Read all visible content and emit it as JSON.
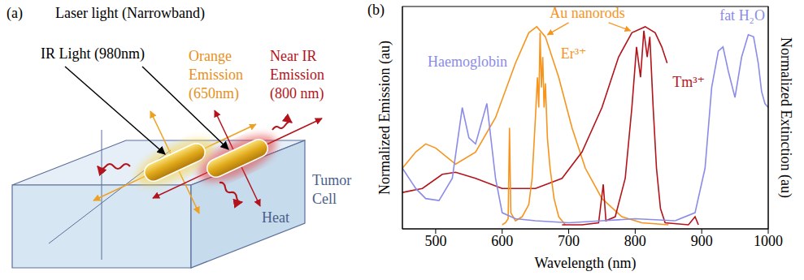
{
  "diagram": {
    "panel_label": "(a)",
    "title": "Laser light (Narrowband)",
    "excitation": "IR Light (980nm)",
    "orange_emission": [
      "Orange",
      "Emission",
      "(650nm)"
    ],
    "nir_emission": [
      "Near IR",
      "Emission",
      "(800 nm)"
    ],
    "cell": [
      "Tumor",
      "Cell"
    ],
    "heat": "Heat"
  },
  "chart_data": {
    "panel_label": "(b)",
    "type": "line",
    "xlabel": "Wavelength (nm)",
    "ylabel": "Normalized Emission (au)",
    "y2label": "Normalized Extinction (au)",
    "xlim": [
      450,
      1000
    ],
    "xticks": [
      500,
      600,
      700,
      800,
      900,
      1000
    ],
    "ylim": [
      0,
      1.1
    ],
    "y2lim": [
      0,
      1.1
    ],
    "tick_labels": "x",
    "grid": false,
    "annotations": [
      {
        "text": "Au nanorods",
        "color": "#f7941d"
      }
    ],
    "series": [
      {
        "color": "#f7941d",
        "axis": "y2",
        "x": [
          450,
          470,
          485,
          500,
          530,
          560,
          590,
          620,
          640,
          652,
          665,
          685,
          705,
          725,
          750,
          780,
          810,
          850
        ],
        "values": [
          0.3,
          0.38,
          0.42,
          0.4,
          0.32,
          0.38,
          0.55,
          0.82,
          0.97,
          1.0,
          0.95,
          0.75,
          0.5,
          0.3,
          0.15,
          0.06,
          0.03,
          0.02
        ]
      },
      {
        "color": "#b3131b",
        "axis": "y2",
        "x": [
          450,
          480,
          510,
          530,
          560,
          600,
          650,
          690,
          720,
          750,
          775,
          795,
          815,
          830,
          840,
          848
        ],
        "values": [
          0.18,
          0.2,
          0.27,
          0.28,
          0.25,
          0.2,
          0.2,
          0.25,
          0.38,
          0.6,
          0.85,
          0.97,
          1.0,
          0.97,
          0.9,
          0.82
        ]
      },
      {
        "name": "Er³⁺",
        "color": "#f7941d",
        "axis": "y",
        "x": [
          600,
          605,
          609,
          611,
          613,
          620,
          630,
          640,
          645,
          650,
          653,
          655,
          657,
          659,
          661,
          663,
          665,
          668,
          672,
          678,
          685,
          695
        ],
        "values": [
          0.02,
          0.03,
          0.05,
          0.5,
          0.08,
          0.04,
          0.06,
          0.12,
          0.25,
          0.55,
          0.75,
          0.6,
          0.97,
          0.7,
          0.85,
          0.6,
          0.72,
          0.45,
          0.3,
          0.15,
          0.06,
          0.02
        ]
      },
      {
        "name": "Tm³⁺",
        "color": "#b3131b",
        "axis": "y",
        "x": [
          690,
          720,
          745,
          752,
          756,
          770,
          785,
          795,
          802,
          808,
          813,
          818,
          822,
          827,
          832,
          838,
          845,
          880,
          890,
          895
        ],
        "values": [
          0.02,
          0.02,
          0.03,
          0.22,
          0.04,
          0.06,
          0.25,
          0.6,
          0.9,
          0.75,
          0.98,
          0.85,
          0.95,
          0.6,
          0.3,
          0.1,
          0.03,
          0.02,
          0.06,
          0.02
        ]
      },
      {
        "name": "Haemoglobin",
        "color": "#8b8be8",
        "axis": "y2",
        "x": [
          450,
          470,
          485,
          505,
          525,
          540,
          550,
          560,
          577,
          590,
          600,
          620,
          650,
          700,
          750,
          800,
          860
        ],
        "values": [
          0.3,
          0.2,
          0.15,
          0.14,
          0.25,
          0.6,
          0.45,
          0.42,
          0.62,
          0.25,
          0.08,
          0.05,
          0.04,
          0.03,
          0.04,
          0.05,
          0.04
        ]
      },
      {
        "name": "fat H₂O",
        "color": "#8b8be8",
        "axis": "y2",
        "x": [
          860,
          890,
          905,
          915,
          925,
          932,
          940,
          950,
          960,
          970,
          978,
          985,
          990,
          995,
          1000
        ],
        "values": [
          0.04,
          0.08,
          0.3,
          0.7,
          0.88,
          0.9,
          0.78,
          0.65,
          0.85,
          0.96,
          0.95,
          0.82,
          0.68,
          0.62,
          0.6
        ]
      }
    ]
  }
}
